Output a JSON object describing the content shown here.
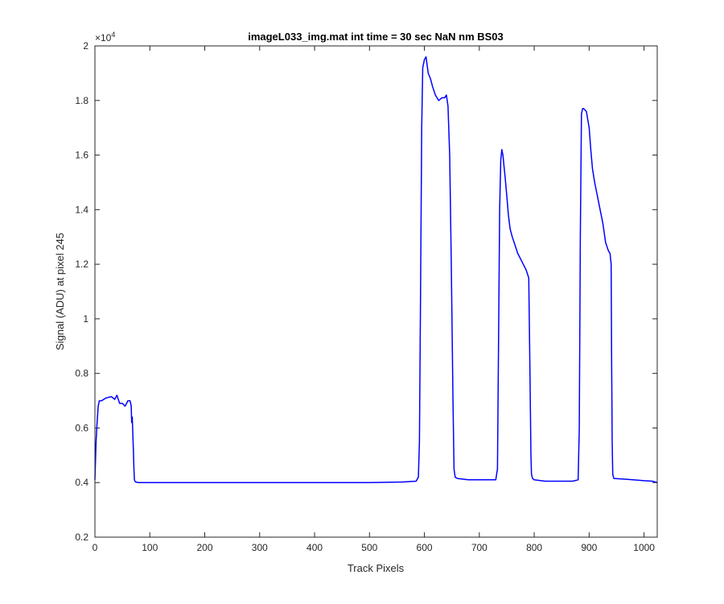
{
  "chart_data": {
    "type": "line",
    "title": "imageL033_img.mat int time = 30 sec  NaN nm BS03",
    "xlabel": "Track Pixels",
    "ylabel": "Signal (ADU) at pixel 245",
    "y_exponent_base": "×10",
    "y_exponent_power": "4",
    "xlim": [
      0,
      1024
    ],
    "ylim": [
      0.2,
      2.0
    ],
    "x_ticks": [
      0,
      100,
      200,
      300,
      400,
      500,
      600,
      700,
      800,
      900,
      1000
    ],
    "x_tick_labels": [
      "0",
      "100",
      "200",
      "300",
      "400",
      "500",
      "600",
      "700",
      "800",
      "900",
      "1000"
    ],
    "y_ticks": [
      0.2,
      0.4,
      0.6,
      0.8,
      1.0,
      1.2,
      1.4,
      1.6,
      1.8,
      2.0
    ],
    "y_tick_labels": [
      "0.2",
      "0.4",
      "0.6",
      "0.8",
      "1",
      "1.2",
      "1.4",
      "1.6",
      "1.8",
      "2"
    ],
    "grid": false,
    "line_color": "#0000ff",
    "series": [
      {
        "x": [
          0,
          2,
          4,
          6,
          8,
          12,
          20,
          30,
          36,
          40,
          45,
          50,
          55,
          60,
          64,
          66,
          67,
          68,
          69,
          70,
          71,
          72,
          73,
          74,
          80,
          100,
          150,
          200,
          300,
          400,
          500,
          560,
          585,
          589,
          591,
          593,
          595,
          597,
          600,
          603,
          607,
          611,
          615,
          620,
          626,
          632,
          637,
          640,
          643,
          646,
          649,
          652,
          654,
          656,
          660,
          680,
          700,
          720,
          730,
          733,
          735,
          737,
          739,
          741,
          743,
          745,
          747,
          750,
          753,
          756,
          760,
          765,
          770,
          775,
          780,
          785,
          790,
          792,
          794,
          795,
          797,
          800,
          820,
          850,
          870,
          880,
          882,
          884,
          886,
          888,
          890,
          895,
          900,
          903,
          906,
          910,
          915,
          920,
          925,
          930,
          935,
          938,
          940,
          941,
          942,
          943,
          945,
          960,
          980,
          1000,
          1015,
          1024
        ],
        "y": [
          0.41,
          0.55,
          0.62,
          0.68,
          0.7,
          0.7,
          0.71,
          0.715,
          0.705,
          0.72,
          0.69,
          0.69,
          0.68,
          0.7,
          0.7,
          0.68,
          0.62,
          0.64,
          0.58,
          0.52,
          0.45,
          0.41,
          0.405,
          0.402,
          0.4,
          0.4,
          0.4,
          0.4,
          0.4,
          0.4,
          0.4,
          0.402,
          0.405,
          0.42,
          0.55,
          1.1,
          1.7,
          1.92,
          1.95,
          1.96,
          1.9,
          1.88,
          1.85,
          1.82,
          1.8,
          1.81,
          1.81,
          1.82,
          1.78,
          1.6,
          1.2,
          0.7,
          0.45,
          0.42,
          0.415,
          0.41,
          0.41,
          0.41,
          0.41,
          0.45,
          0.9,
          1.4,
          1.58,
          1.62,
          1.6,
          1.56,
          1.52,
          1.45,
          1.38,
          1.33,
          1.3,
          1.27,
          1.24,
          1.22,
          1.2,
          1.18,
          1.15,
          0.85,
          0.5,
          0.43,
          0.415,
          0.41,
          0.405,
          0.405,
          0.405,
          0.41,
          0.6,
          1.3,
          1.75,
          1.77,
          1.77,
          1.76,
          1.7,
          1.62,
          1.55,
          1.5,
          1.45,
          1.4,
          1.35,
          1.28,
          1.25,
          1.24,
          1.2,
          0.85,
          0.55,
          0.43,
          0.415,
          0.413,
          0.41,
          0.407,
          0.405,
          0.4
        ]
      }
    ]
  }
}
